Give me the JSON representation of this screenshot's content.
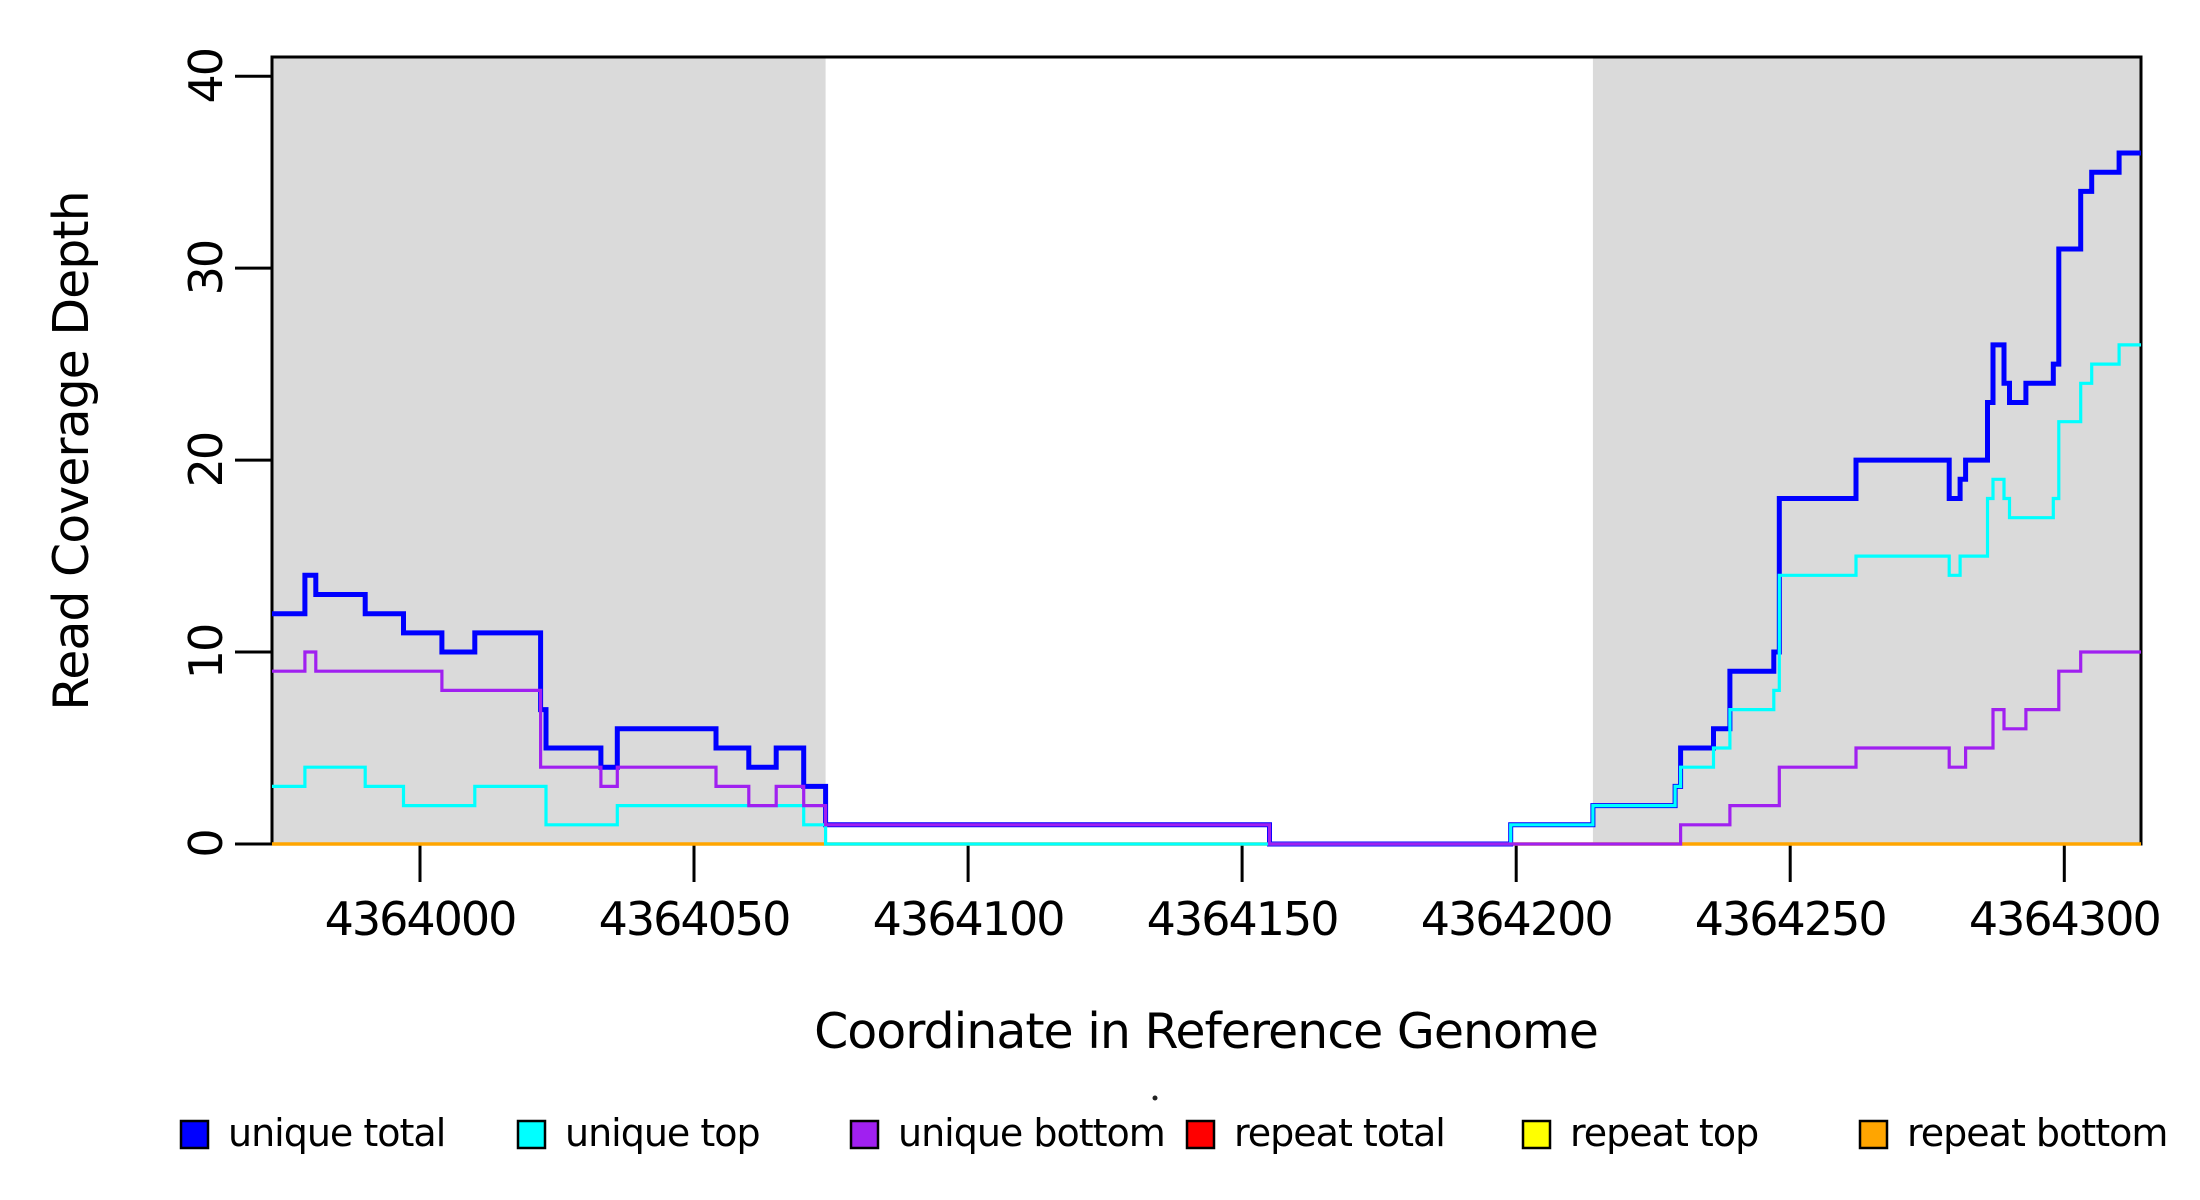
{
  "chart_data": {
    "type": "line",
    "subtype": "step",
    "title": "",
    "xlabel": "Coordinate in Reference Genome",
    "ylabel": "Read Coverage Depth",
    "x_range": [
      4363973,
      4364314
    ],
    "y_range": [
      0,
      41
    ],
    "x_ticks": [
      4364000,
      4364050,
      4364100,
      4364150,
      4364200,
      4364250,
      4364300
    ],
    "y_ticks": [
      0,
      10,
      20,
      30,
      40
    ],
    "grid": "off",
    "legend_position": "bottom",
    "shaded_regions": [
      {
        "x0": 4363973,
        "x1": 4364074,
        "color": "#DADADA"
      },
      {
        "x0": 4364214,
        "x1": 4364314,
        "color": "#DADADA"
      }
    ],
    "draw_order": [
      "repeat total",
      "repeat top",
      "repeat bottom",
      "unique total",
      "unique top",
      "unique bottom"
    ],
    "series": [
      {
        "name": "unique total",
        "color": "#0000FF",
        "line_width": 5,
        "steps": [
          [
            4363973,
            12
          ],
          [
            4363979,
            14
          ],
          [
            4363981,
            13
          ],
          [
            4363990,
            12
          ],
          [
            4363997,
            11
          ],
          [
            4364004,
            10
          ],
          [
            4364010,
            11
          ],
          [
            4364022,
            7
          ],
          [
            4364023,
            5
          ],
          [
            4364033,
            4
          ],
          [
            4364036,
            6
          ],
          [
            4364054,
            5
          ],
          [
            4364060,
            4
          ],
          [
            4364065,
            5
          ],
          [
            4364070,
            3
          ],
          [
            4364074,
            1
          ],
          [
            4364155,
            0
          ],
          [
            4364199,
            1
          ],
          [
            4364214,
            2
          ],
          [
            4364229,
            3
          ],
          [
            4364230,
            5
          ],
          [
            4364236,
            6
          ],
          [
            4364239,
            9
          ],
          [
            4364247,
            10
          ],
          [
            4364248,
            18
          ],
          [
            4364262,
            20
          ],
          [
            4364279,
            18
          ],
          [
            4364281,
            19
          ],
          [
            4364282,
            20
          ],
          [
            4364286,
            23
          ],
          [
            4364287,
            26
          ],
          [
            4364289,
            24
          ],
          [
            4364290,
            23
          ],
          [
            4364293,
            24
          ],
          [
            4364298,
            25
          ],
          [
            4364299,
            31
          ],
          [
            4364303,
            34
          ],
          [
            4364305,
            35
          ],
          [
            4364310,
            36
          ]
        ]
      },
      {
        "name": "unique top",
        "color": "#00FFFF",
        "line_width": 3.2,
        "steps": [
          [
            4363973,
            3
          ],
          [
            4363979,
            4
          ],
          [
            4363990,
            3
          ],
          [
            4363997,
            2
          ],
          [
            4364010,
            3
          ],
          [
            4364023,
            1
          ],
          [
            4364036,
            2
          ],
          [
            4364070,
            1
          ],
          [
            4364074,
            0
          ],
          [
            4364199,
            1
          ],
          [
            4364214,
            2
          ],
          [
            4364229,
            3
          ],
          [
            4364230,
            4
          ],
          [
            4364236,
            5
          ],
          [
            4364239,
            7
          ],
          [
            4364247,
            8
          ],
          [
            4364248,
            14
          ],
          [
            4364262,
            15
          ],
          [
            4364279,
            14
          ],
          [
            4364281,
            15
          ],
          [
            4364286,
            18
          ],
          [
            4364287,
            19
          ],
          [
            4364289,
            18
          ],
          [
            4364290,
            17
          ],
          [
            4364298,
            18
          ],
          [
            4364299,
            22
          ],
          [
            4364303,
            24
          ],
          [
            4364305,
            25
          ],
          [
            4364310,
            26
          ]
        ]
      },
      {
        "name": "unique bottom",
        "color": "#A020F0",
        "line_width": 3.2,
        "steps": [
          [
            4363973,
            9
          ],
          [
            4363979,
            10
          ],
          [
            4363981,
            9
          ],
          [
            4364004,
            8
          ],
          [
            4364022,
            4
          ],
          [
            4364033,
            3
          ],
          [
            4364036,
            4
          ],
          [
            4364054,
            3
          ],
          [
            4364060,
            2
          ],
          [
            4364065,
            3
          ],
          [
            4364070,
            2
          ],
          [
            4364074,
            1
          ],
          [
            4364155,
            0
          ],
          [
            4364230,
            1
          ],
          [
            4364239,
            2
          ],
          [
            4364248,
            4
          ],
          [
            4364262,
            5
          ],
          [
            4364279,
            4
          ],
          [
            4364282,
            5
          ],
          [
            4364287,
            7
          ],
          [
            4364289,
            6
          ],
          [
            4364293,
            7
          ],
          [
            4364299,
            9
          ],
          [
            4364303,
            10
          ]
        ]
      },
      {
        "name": "repeat total",
        "color": "#FF0000",
        "line_width": 3,
        "steps": [
          [
            4363973,
            0
          ]
        ]
      },
      {
        "name": "repeat top",
        "color": "#FFFF00",
        "line_width": 3,
        "steps": [
          [
            4363973,
            0
          ]
        ]
      },
      {
        "name": "repeat bottom",
        "color": "#FFA500",
        "line_width": 3.6,
        "steps": [
          [
            4363973,
            0
          ]
        ]
      }
    ],
    "legend": [
      {
        "label": "unique total",
        "color": "#0000FF"
      },
      {
        "label": "unique top",
        "color": "#00FFFF"
      },
      {
        "label": "unique bottom",
        "color": "#A020F0"
      },
      {
        "label": "repeat total",
        "color": "#FF0000"
      },
      {
        "label": "repeat top",
        "color": "#FFFF00"
      },
      {
        "label": "repeat bottom",
        "color": "#FFA500"
      }
    ]
  }
}
